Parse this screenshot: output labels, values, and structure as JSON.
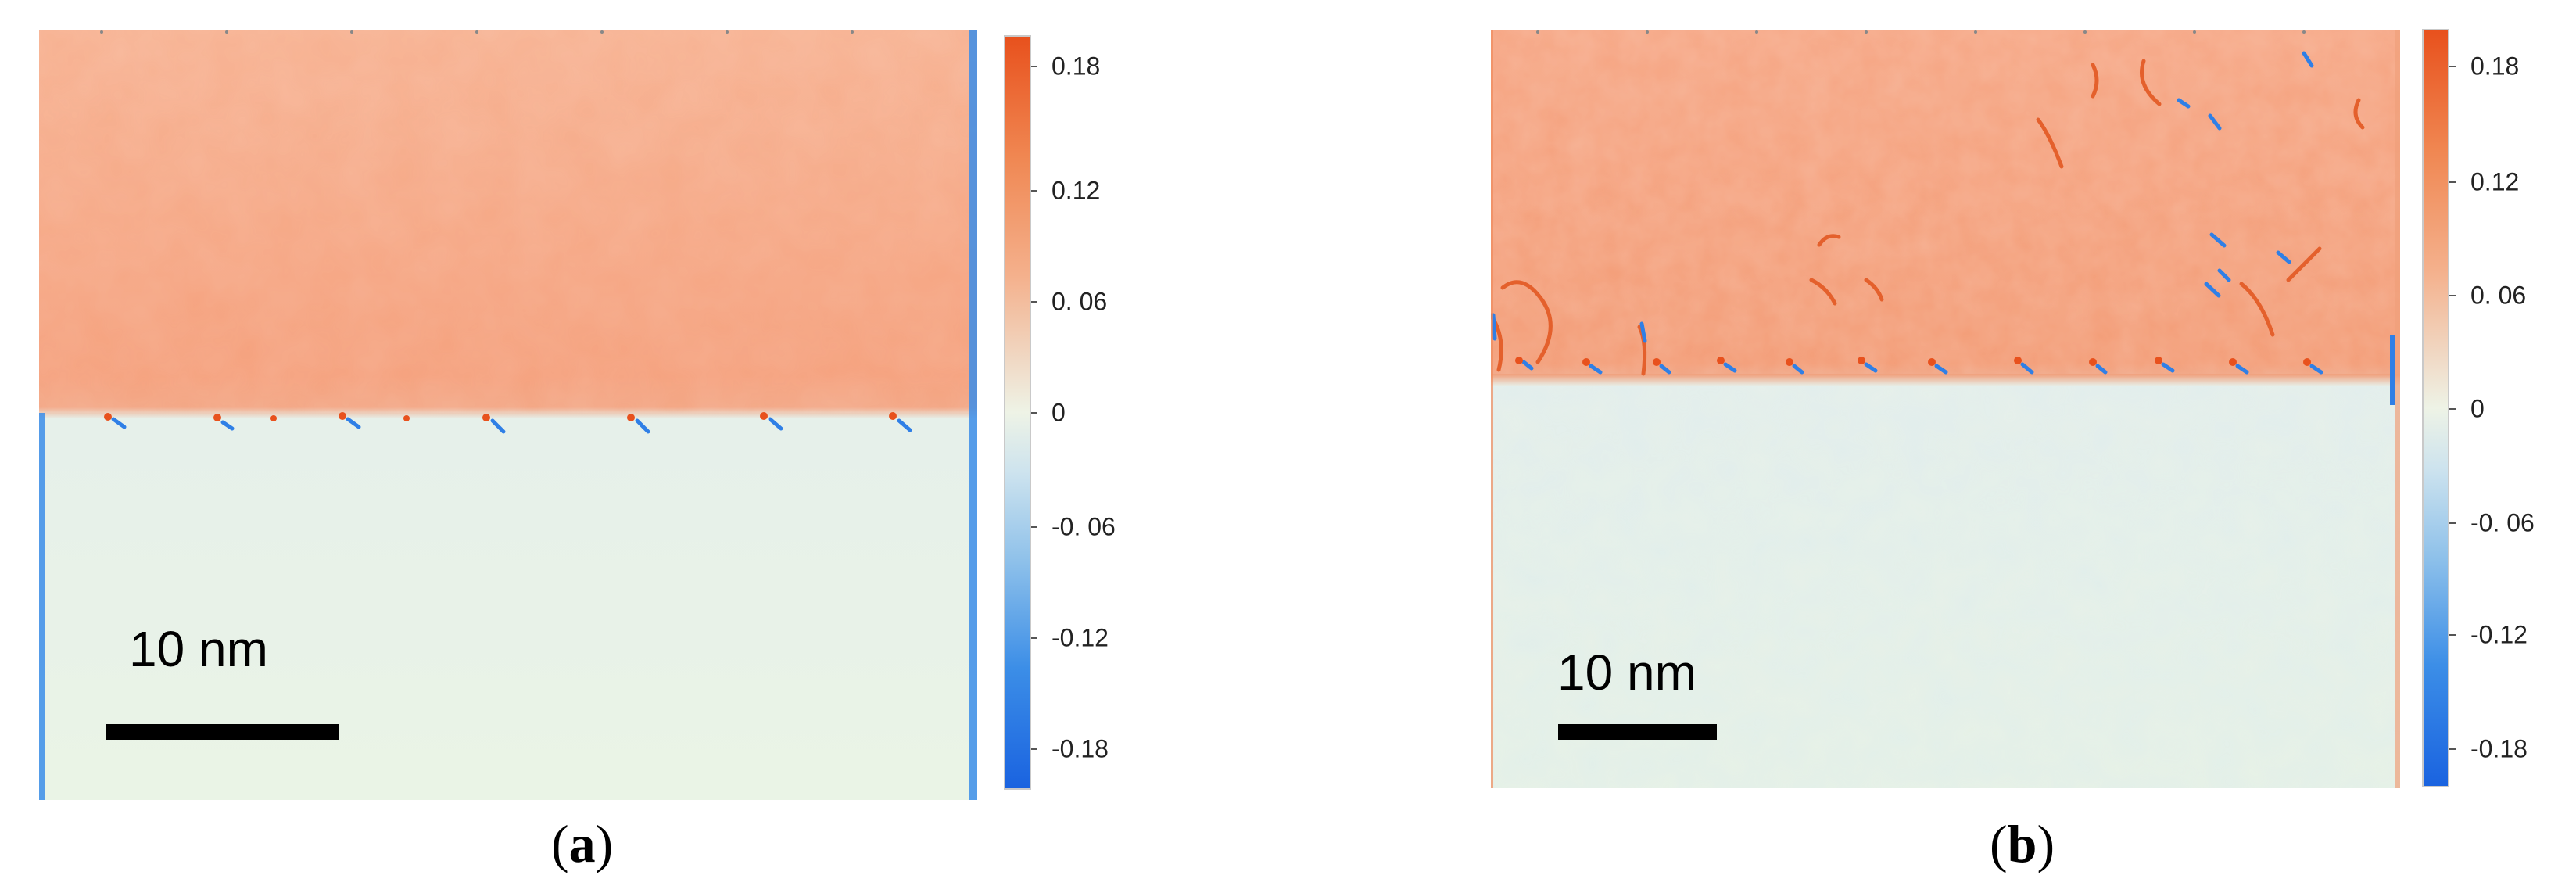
{
  "panels": [
    {
      "id": "a",
      "caption_open": "(",
      "caption_letter": "a",
      "caption_close": ")",
      "scalebar_label": "10 nm",
      "colorbar_ticks": [
        "0.18",
        "0.12",
        "0. 06",
        "0",
        "-0. 06",
        "-0.12",
        "-0.18"
      ]
    },
    {
      "id": "b",
      "caption_open": "(",
      "caption_letter": "b",
      "caption_close": ")",
      "scalebar_label": "10 nm",
      "colorbar_ticks": [
        "0.18",
        "0.12",
        "0. 06",
        "0",
        "-0. 06",
        "-0.12",
        "-0.18"
      ]
    }
  ],
  "colors": {
    "strain_positive": "#f5a07c",
    "strain_zero": "#e9f3e4",
    "strain_negative": "#2f7fe6",
    "strain_max": "#e8511d"
  }
}
